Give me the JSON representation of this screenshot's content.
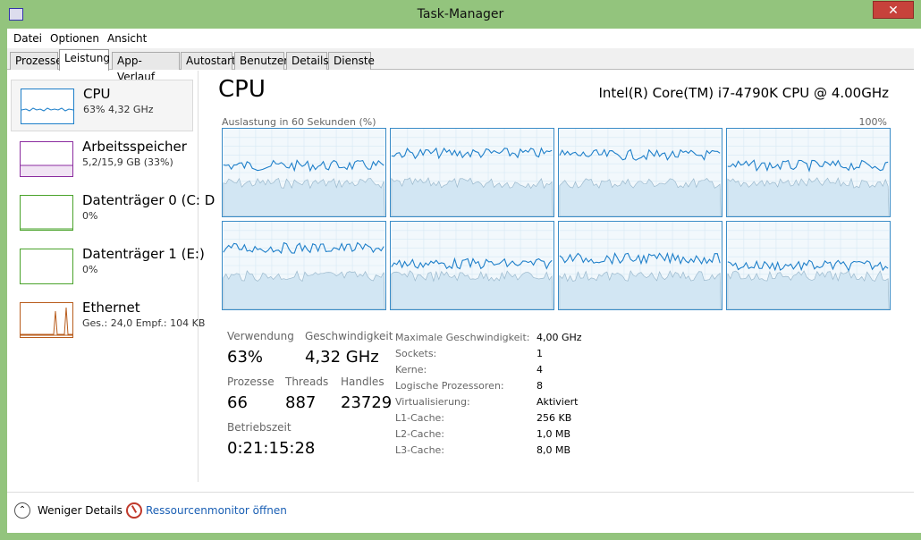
{
  "window": {
    "title": "Task-Manager",
    "close_symbol": "✕"
  },
  "menu": [
    "Datei",
    "Optionen",
    "Ansicht"
  ],
  "tabs": [
    "Prozesse",
    "Leistung",
    "App-Verlauf",
    "Autostart",
    "Benutzer",
    "Details",
    "Dienste"
  ],
  "active_tab": "Leistung",
  "resources": [
    {
      "name": "CPU",
      "sub": "63% 4,32 GHz",
      "color": "#1c7ec9"
    },
    {
      "name": "Arbeitsspeicher",
      "sub": "5,2/15,9 GB (33%)",
      "color": "#8b2b9f"
    },
    {
      "name": "Datenträger 0 (C: D",
      "sub": "0%",
      "color": "#4aa32b"
    },
    {
      "name": "Datenträger 1 (E:)",
      "sub": "0%",
      "color": "#4aa32b"
    },
    {
      "name": "Ethernet",
      "sub": "Ges.: 24,0  Empf.: 104 KB",
      "color": "#b85c1c"
    }
  ],
  "cpu": {
    "title": "CPU",
    "model": "Intel(R) Core(TM) i7-4790K CPU @ 4.00GHz",
    "chart_caption": "Auslastung in 60 Sekunden (%)",
    "chart_max": "100%",
    "stats": {
      "verwendung_label": "Verwendung",
      "verwendung": "63%",
      "geschw_label": "Geschwindigkeit",
      "geschw": "4,32 GHz",
      "prozesse_label": "Prozesse",
      "prozesse": "66",
      "threads_label": "Threads",
      "threads": "887",
      "handles_label": "Handles",
      "handles": "23729",
      "betriebszeit_label": "Betriebszeit",
      "betriebszeit": "0:21:15:28"
    },
    "details": [
      {
        "k": "Maximale Geschwindigkeit:",
        "v": "4,00 GHz"
      },
      {
        "k": "Sockets:",
        "v": "1"
      },
      {
        "k": "Kerne:",
        "v": "4"
      },
      {
        "k": "Logische Prozessoren:",
        "v": "8"
      },
      {
        "k": "Virtualisierung:",
        "v": "Aktiviert"
      },
      {
        "k": "L1-Cache:",
        "v": "256 KB"
      },
      {
        "k": "L2-Cache:",
        "v": "1,0 MB"
      },
      {
        "k": "L3-Cache:",
        "v": "8,0 MB"
      }
    ]
  },
  "footer": {
    "less": "Weniger Details",
    "resmon": "Ressourcenmonitor öffnen"
  }
}
